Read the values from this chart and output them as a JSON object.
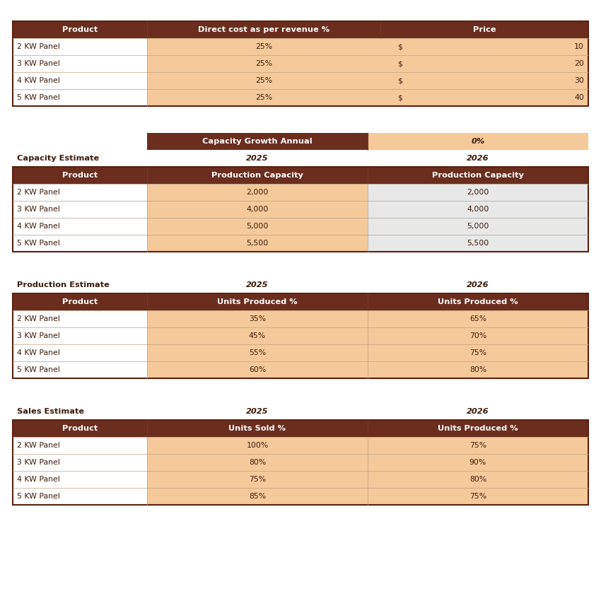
{
  "bg_color": "#FFFFFF",
  "header_brown": "#6B2E1E",
  "light_orange": "#F5C99A",
  "white": "#FFFFFF",
  "light_gray": "#E8E8E8",
  "header_text_color": "#FFFFFF",
  "dark_text": "#3B1A0A",
  "table1": {
    "title_row": [
      "Product",
      "Direct cost as per revenue %",
      "Price"
    ],
    "rows": [
      [
        "2 KW Panel",
        "25%",
        "$",
        "10"
      ],
      [
        "3 KW Panel",
        "25%",
        "$",
        "20"
      ],
      [
        "4 KW Panel",
        "25%",
        "$",
        "30"
      ],
      [
        "5 KW Panel",
        "25%",
        "$",
        "40"
      ]
    ]
  },
  "table2": {
    "top_row": [
      "",
      "Capacity Growth Annual",
      "0%"
    ],
    "label_row": [
      "Capacity Estimate",
      "2025",
      "2026"
    ],
    "header_row": [
      "Product",
      "Production Capacity",
      "Production Capacity"
    ],
    "rows": [
      [
        "2 KW Panel",
        "2,000",
        "2,000"
      ],
      [
        "3 KW Panel",
        "4,000",
        "4,000"
      ],
      [
        "4 KW Panel",
        "5,000",
        "5,000"
      ],
      [
        "5 KW Panel",
        "5,500",
        "5,500"
      ]
    ]
  },
  "table3": {
    "label_row": [
      "Production Estimate",
      "2025",
      "2026"
    ],
    "header_row": [
      "Product",
      "Units Produced %",
      "Units Produced %"
    ],
    "rows": [
      [
        "2 KW Panel",
        "35%",
        "65%"
      ],
      [
        "3 KW Panel",
        "45%",
        "70%"
      ],
      [
        "4 KW Panel",
        "55%",
        "75%"
      ],
      [
        "5 KW Panel",
        "60%",
        "80%"
      ]
    ]
  },
  "table4": {
    "label_row": [
      "Sales Estimate",
      "2025",
      "2026"
    ],
    "header_row": [
      "Product",
      "Units Sold %",
      "Units Produced %"
    ],
    "rows": [
      [
        "2 KW Panel",
        "100%",
        "75%"
      ],
      [
        "3 KW Panel",
        "80%",
        "90%"
      ],
      [
        "4 KW Panel",
        "75%",
        "80%"
      ],
      [
        "5 KW Panel",
        "85%",
        "75%"
      ]
    ]
  }
}
